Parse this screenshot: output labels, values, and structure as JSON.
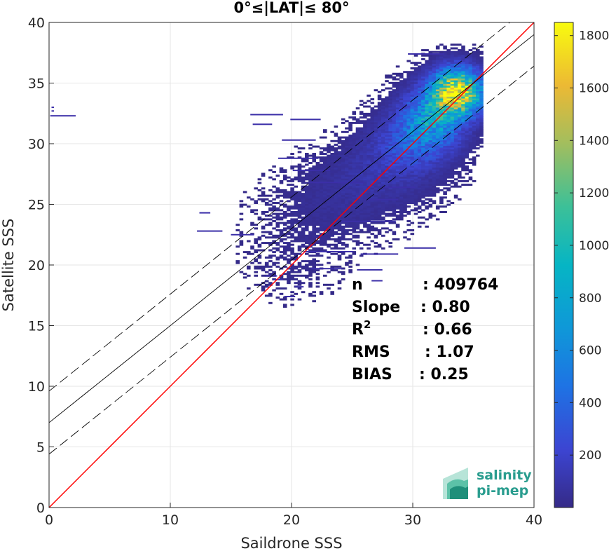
{
  "chart_data": {
    "type": "heatmap",
    "title": "0°≤|LAT|≤ 80°",
    "xlabel": "Saildrone SSS",
    "ylabel": "Satellite SSS",
    "xlim": [
      0,
      40
    ],
    "ylim": [
      0,
      40
    ],
    "xticks": [
      "0",
      "10",
      "20",
      "30",
      "40"
    ],
    "yticks": [
      "0",
      "5",
      "10",
      "15",
      "20",
      "25",
      "30",
      "35",
      "40"
    ],
    "grid": true,
    "colorbar": {
      "range": [
        0,
        1850
      ],
      "ticks": [
        "200",
        "400",
        "600",
        "800",
        "1000",
        "1200",
        "1400",
        "1600",
        "1800"
      ],
      "colormap": "parula"
    },
    "lines": [
      {
        "kind": "one-to-one",
        "color": "#ff0000",
        "points": [
          [
            0,
            0
          ],
          [
            40,
            40
          ]
        ]
      },
      {
        "kind": "regression",
        "color": "#000000",
        "style": "solid",
        "intercept": 7.0,
        "slope": 0.8
      },
      {
        "kind": "regression-upper",
        "color": "#000000",
        "style": "dashed",
        "intercept": 9.6,
        "slope": 0.8
      },
      {
        "kind": "regression-lower",
        "color": "#000000",
        "style": "dashed",
        "intercept": 4.4,
        "slope": 0.8
      }
    ],
    "stats": [
      {
        "label": "n",
        "value": ": 409764"
      },
      {
        "label": "Slope",
        "value": ": 0.80"
      },
      {
        "label": "R",
        "sup": "2",
        "value": ": 0.66"
      },
      {
        "label": "RMS",
        "value": ": 1.07"
      },
      {
        "label": "BIAS",
        "value": ": 0.25"
      }
    ],
    "density_clusters": [
      {
        "x": 33.5,
        "y": 34.2,
        "sx": 1.3,
        "sy": 1.2,
        "peak": 1850
      },
      {
        "x": 31.5,
        "y": 32.0,
        "sx": 1.6,
        "sy": 1.6,
        "peak": 700
      },
      {
        "x": 29.5,
        "y": 30.0,
        "sx": 2.0,
        "sy": 1.6,
        "peak": 250
      },
      {
        "x": 27.0,
        "y": 27.5,
        "sx": 3.0,
        "sy": 1.8,
        "peak": 90
      },
      {
        "x": 23.0,
        "y": 24.5,
        "sx": 3.5,
        "sy": 2.0,
        "peak": 40
      },
      {
        "x": 20.0,
        "y": 20.0,
        "sx": 2.5,
        "sy": 2.0,
        "peak": 20
      }
    ],
    "outlier_segments": [
      [
        0.1,
        2.2,
        32.3
      ],
      [
        0.2,
        0.4,
        33.0
      ],
      [
        0.2,
        0.4,
        32.7
      ],
      [
        16.8,
        18.4,
        31.6
      ],
      [
        19.2,
        22.0,
        30.3
      ],
      [
        18.9,
        22.2,
        28.8
      ],
      [
        20.1,
        23.2,
        27.8
      ],
      [
        21.4,
        26.0,
        26.8
      ],
      [
        12.4,
        13.3,
        24.3
      ],
      [
        12.2,
        14.3,
        22.8
      ],
      [
        15.0,
        16.9,
        22.5
      ],
      [
        21.0,
        25.1,
        21.1
      ],
      [
        25.7,
        28.8,
        20.9
      ],
      [
        21.6,
        24.2,
        19.7
      ],
      [
        17.9,
        18.8,
        19.1
      ],
      [
        18.5,
        19.3,
        18.8
      ],
      [
        20.3,
        21.0,
        18.2
      ],
      [
        19.4,
        20.3,
        17.4
      ],
      [
        26.6,
        27.5,
        18.7
      ],
      [
        25.4,
        27.5,
        19.6
      ],
      [
        29.3,
        31.9,
        21.4
      ],
      [
        27.4,
        30.2,
        26.4
      ],
      [
        26.0,
        28.8,
        25.4
      ],
      [
        24.0,
        28.6,
        23.6
      ],
      [
        19.9,
        22.4,
        32.0
      ],
      [
        16.6,
        19.3,
        32.4
      ],
      [
        29.6,
        32.6,
        37.4
      ]
    ]
  },
  "logo": {
    "line1": "salinity",
    "line2": "pi-mep"
  }
}
